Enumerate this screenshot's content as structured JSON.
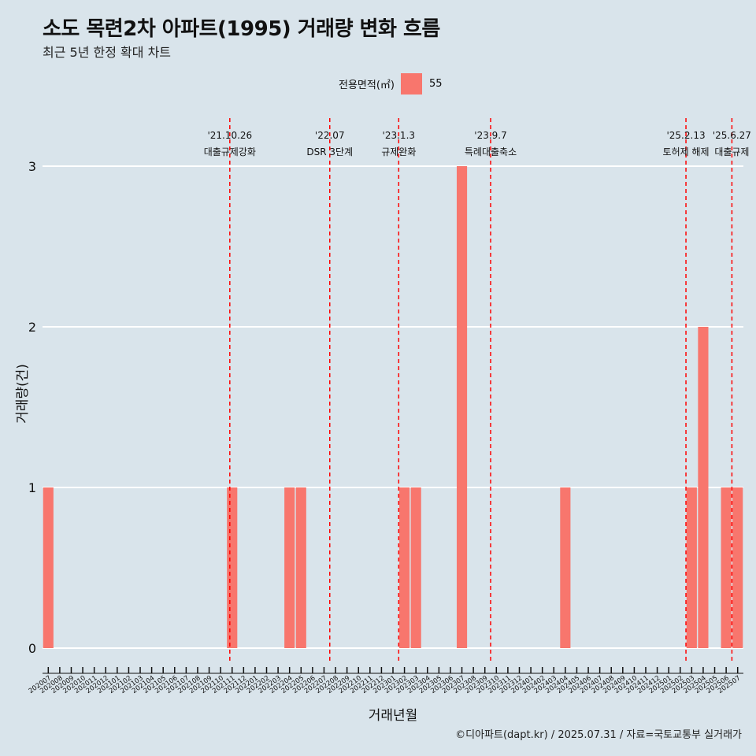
{
  "title": "소도 목련2차 아파트(1995) 거래량 변화 흐름",
  "subtitle": "최근 5년 한정 확대 차트",
  "legend": {
    "title": "전용면적(㎡)",
    "items": [
      {
        "label": "55",
        "color": "#f8766d"
      }
    ]
  },
  "caption": "©디아파트(dapt.kr) / 2025.07.31 / 자료=국토교통부 실거래가",
  "chart_data": {
    "type": "bar",
    "xlabel": "거래년월",
    "ylabel": "거래량(건)",
    "ylim": [
      0,
      3
    ],
    "yticks": [
      0,
      1,
      2,
      3
    ],
    "grid": true,
    "bar_color": "#f8766d",
    "categories": [
      "202007",
      "202008",
      "202009",
      "202010",
      "202011",
      "202012",
      "202101",
      "202102",
      "202103",
      "202104",
      "202105",
      "202106",
      "202107",
      "202108",
      "202109",
      "202110",
      "202111",
      "202112",
      "202201",
      "202202",
      "202203",
      "202204",
      "202205",
      "202206",
      "202207",
      "202208",
      "202209",
      "202210",
      "202211",
      "202212",
      "202301",
      "202302",
      "202303",
      "202304",
      "202305",
      "202306",
      "202307",
      "202308",
      "202309",
      "202310",
      "202311",
      "202312",
      "202401",
      "202402",
      "202403",
      "202404",
      "202405",
      "202406",
      "202407",
      "202408",
      "202409",
      "202410",
      "202411",
      "202412",
      "202501",
      "202502",
      "202503",
      "202504",
      "202505",
      "202506",
      "202507"
    ],
    "series": [
      {
        "name": "55",
        "values": [
          1,
          0,
          0,
          0,
          0,
          0,
          0,
          0,
          0,
          0,
          0,
          0,
          0,
          0,
          0,
          0,
          1,
          0,
          0,
          0,
          0,
          1,
          1,
          0,
          0,
          0,
          0,
          0,
          0,
          0,
          0,
          1,
          1,
          0,
          0,
          0,
          3,
          0,
          0,
          0,
          0,
          0,
          0,
          0,
          0,
          1,
          0,
          0,
          0,
          0,
          0,
          0,
          0,
          0,
          0,
          0,
          1,
          2,
          0,
          1,
          1
        ]
      }
    ],
    "annotations": [
      {
        "date": "'21.10.26",
        "label": "대출규제강화",
        "index": 15.8
      },
      {
        "date": "'22.07",
        "label": "DSR 3단계",
        "index": 24.5
      },
      {
        "date": "'23.1.3",
        "label": "규제완화",
        "index": 30.5
      },
      {
        "date": "'23.9.7",
        "label": "특례대출축소",
        "index": 38.5
      },
      {
        "date": "'25.2.13",
        "label": "토허제 해제",
        "index": 55.5
      },
      {
        "date": "'25.6.27",
        "label": "대출규제",
        "index": 59.5
      }
    ]
  }
}
